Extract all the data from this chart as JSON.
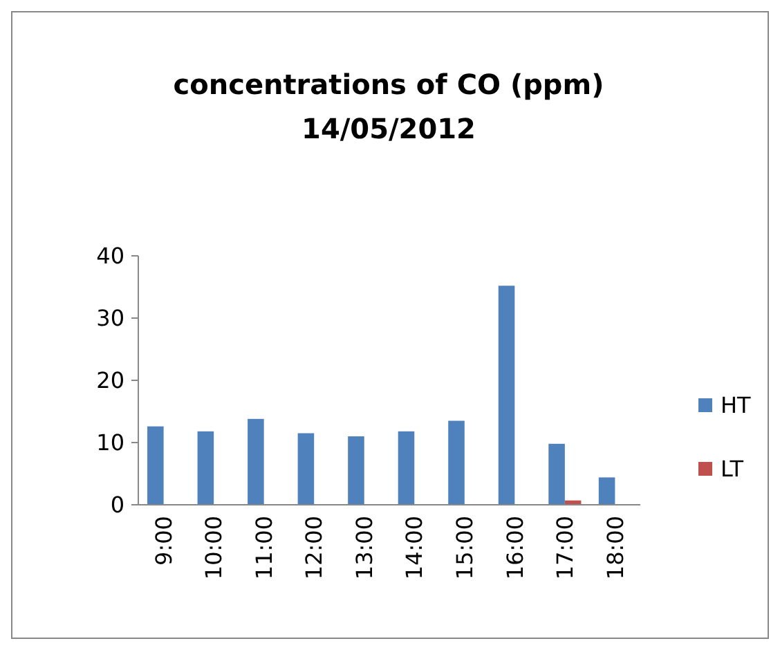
{
  "chart_data": {
    "type": "bar",
    "title": "concentrations of CO (ppm)\n14/05/2012",
    "categories": [
      "9:00",
      "10:00",
      "11:00",
      "12:00",
      "13:00",
      "14:00",
      "15:00",
      "16:00",
      "17:00",
      "18:00"
    ],
    "series": [
      {
        "name": "HT",
        "color": "#4f81bd",
        "values": [
          12.6,
          11.8,
          13.8,
          11.5,
          11.0,
          11.8,
          13.5,
          35.2,
          9.8,
          4.4
        ]
      },
      {
        "name": "LT",
        "color": "#c0504d",
        "values": [
          null,
          null,
          null,
          null,
          null,
          null,
          null,
          null,
          0.7,
          null
        ]
      }
    ],
    "ylim": [
      0,
      40
    ],
    "yticks": [
      0,
      10,
      20,
      30,
      40
    ],
    "grid": false,
    "legend": "right"
  }
}
